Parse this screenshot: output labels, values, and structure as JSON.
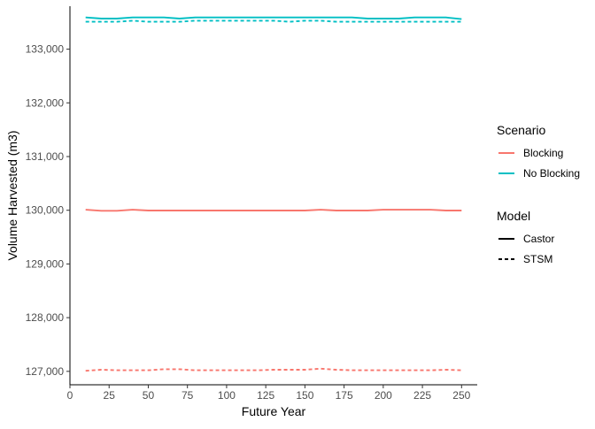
{
  "chart_data": {
    "type": "line",
    "xlabel": "Future Year",
    "ylabel": "Volume Harvested (m3)",
    "xlim": [
      0,
      260
    ],
    "ylim": [
      126750,
      133800
    ],
    "x_ticks": [
      0,
      25,
      50,
      75,
      100,
      125,
      150,
      175,
      200,
      225,
      250
    ],
    "x_tick_labels": [
      "0",
      "25",
      "50",
      "75",
      "100",
      "125",
      "150",
      "175",
      "200",
      "225",
      "250"
    ],
    "y_ticks": [
      127000,
      128000,
      129000,
      130000,
      131000,
      132000,
      133000
    ],
    "y_tick_labels": [
      "127,000",
      "128,000",
      "129,000",
      "130,000",
      "131,000",
      "132,000",
      "133,000"
    ],
    "grid": false,
    "legend_position": "right",
    "legend": {
      "scenario_title": "Scenario",
      "scenario_items": [
        {
          "label": "Blocking",
          "color": "#F8766D"
        },
        {
          "label": "No Blocking",
          "color": "#00BFC4"
        }
      ],
      "model_title": "Model",
      "model_items": [
        {
          "label": "Castor",
          "linetype": "solid"
        },
        {
          "label": "STSM",
          "linetype": "dashed"
        }
      ]
    },
    "x": [
      10,
      20,
      30,
      40,
      50,
      60,
      70,
      80,
      90,
      100,
      110,
      120,
      130,
      140,
      150,
      160,
      170,
      180,
      190,
      200,
      210,
      220,
      230,
      240,
      250
    ],
    "series": [
      {
        "name": "Blocking",
        "model": "Castor",
        "color": "#F8766D",
        "linetype": "solid",
        "values": [
          130010,
          129990,
          129990,
          130010,
          129995,
          129995,
          129995,
          129995,
          129995,
          129995,
          129995,
          129995,
          129995,
          129995,
          129995,
          130010,
          129995,
          129995,
          129995,
          130010,
          130010,
          130010,
          130010,
          129995,
          129995
        ]
      },
      {
        "name": "Blocking",
        "model": "STSM",
        "color": "#F8766D",
        "linetype": "dashed",
        "values": [
          127010,
          127030,
          127020,
          127020,
          127020,
          127040,
          127040,
          127020,
          127020,
          127020,
          127020,
          127020,
          127030,
          127030,
          127030,
          127050,
          127030,
          127020,
          127020,
          127020,
          127020,
          127020,
          127020,
          127030,
          127020
        ]
      },
      {
        "name": "No Blocking",
        "model": "Castor",
        "color": "#00BFC4",
        "linetype": "solid",
        "values": [
          133590,
          133570,
          133570,
          133590,
          133590,
          133590,
          133570,
          133590,
          133590,
          133590,
          133590,
          133590,
          133590,
          133590,
          133590,
          133590,
          133590,
          133590,
          133570,
          133570,
          133570,
          133590,
          133590,
          133590,
          133560
        ]
      },
      {
        "name": "No Blocking",
        "model": "STSM",
        "color": "#00BFC4",
        "linetype": "dashed",
        "values": [
          133510,
          133510,
          133510,
          133530,
          133510,
          133510,
          133510,
          133530,
          133530,
          133530,
          133530,
          133530,
          133530,
          133510,
          133530,
          133530,
          133510,
          133510,
          133510,
          133510,
          133510,
          133510,
          133510,
          133510,
          133510
        ]
      }
    ]
  }
}
